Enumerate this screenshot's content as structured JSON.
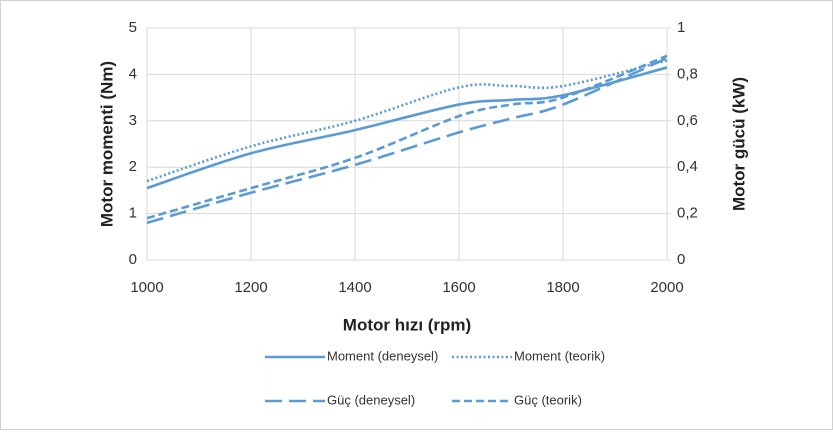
{
  "chart_data": {
    "type": "line",
    "xlabel": "Motor hızı (rpm)",
    "ylabel": "Motor momenti (Nm)",
    "y2label": "Motor gücü (kW)",
    "x": [
      1000,
      1200,
      1400,
      1600,
      1700,
      1800,
      2000
    ],
    "series": [
      {
        "name": "Moment (deneysel)",
        "color": "#5b9bd5",
        "dash": "solid",
        "values": [
          1.55,
          2.3,
          2.8,
          3.35,
          3.45,
          3.55,
          4.15
        ]
      },
      {
        "name": "Moment (teorik)",
        "color": "#5b9bd5",
        "dash": "dotted",
        "values": [
          1.7,
          2.45,
          3.0,
          3.72,
          3.75,
          3.75,
          4.3
        ]
      },
      {
        "name": "Güç (deneysel)",
        "color": "#5b9bd5",
        "dash": "longdash",
        "axis": "y2",
        "values": [
          0.16,
          0.29,
          0.41,
          0.55,
          0.61,
          0.67,
          0.87
        ]
      },
      {
        "name": "Güç (teorik)",
        "color": "#5b9bd5",
        "dash": "dashed",
        "axis": "y2",
        "values": [
          0.18,
          0.31,
          0.44,
          0.62,
          0.67,
          0.7,
          0.88
        ]
      }
    ],
    "xlim": [
      1000,
      2000
    ],
    "xticks": [
      1000,
      1200,
      1400,
      1600,
      1800,
      2000
    ],
    "ylim": [
      0,
      5
    ],
    "yticks": [
      0,
      1,
      2,
      3,
      4,
      5
    ],
    "y2lim": [
      0,
      1
    ],
    "y2ticks": [
      0,
      {
        "value": 0.2,
        "label": "0,2"
      },
      {
        "value": 0.4,
        "label": "0,4"
      },
      {
        "value": 0.6,
        "label": "0,6"
      },
      {
        "value": 0.8,
        "label": "0,8"
      },
      1
    ],
    "grid": true,
    "legend": "bottom"
  }
}
